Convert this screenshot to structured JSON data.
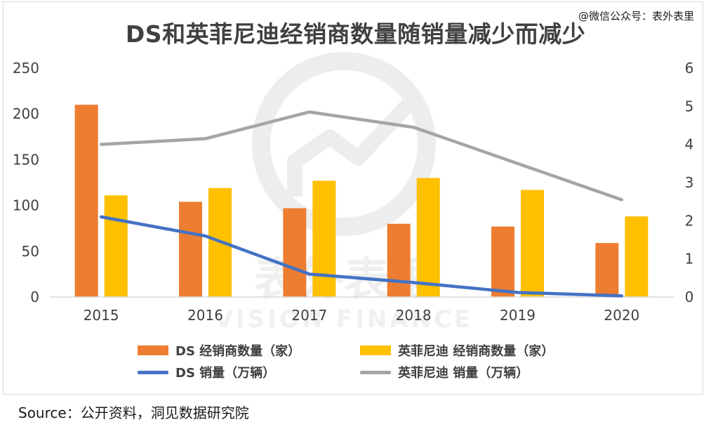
{
  "header": {
    "title": "DS和英菲尼迪经销商数量随销量减少而减少",
    "credit": "@微信公众号：表外表里"
  },
  "footer": {
    "source": "Source：公开资料，洞见数据研究院"
  },
  "watermark": {
    "cn_text": "表外表里",
    "en_text": "VISION FINANCE"
  },
  "colors": {
    "ds_dealers": "#ED7D31",
    "infiniti_dealers": "#FFC000",
    "ds_sales": "#4472C4",
    "infiniti_sales": "#A5A5A5"
  },
  "chart_data": {
    "type": "bar",
    "title": "DS和英菲尼迪经销商数量随销量减少而减少",
    "categories": [
      "2015",
      "2016",
      "2017",
      "2018",
      "2019",
      "2020"
    ],
    "y_left": {
      "ylim": [
        0,
        250
      ],
      "ticks": [
        "0",
        "50",
        "100",
        "150",
        "200",
        "250"
      ]
    },
    "y_right": {
      "ylim": [
        0,
        6
      ],
      "ticks": [
        "0",
        "1",
        "2",
        "3",
        "4",
        "5",
        "6"
      ]
    },
    "grid": false,
    "legend_position": "bottom",
    "series": [
      {
        "name": "DS 经销商数量（家）",
        "kind": "bar",
        "axis": "left",
        "values": [
          210,
          104,
          97,
          80,
          77,
          59
        ]
      },
      {
        "name": "英菲尼迪 经销商数量（家）",
        "kind": "bar",
        "axis": "left",
        "values": [
          111,
          119,
          127,
          130,
          117,
          88
        ]
      },
      {
        "name": "DS 销量（万辆）",
        "kind": "line",
        "axis": "right",
        "values": [
          2.1,
          1.6,
          0.6,
          0.38,
          0.12,
          0.03
        ]
      },
      {
        "name": "英菲尼迪 销量（万辆）",
        "kind": "line",
        "axis": "right",
        "values": [
          4.0,
          4.15,
          4.85,
          4.45,
          3.5,
          2.55
        ]
      }
    ]
  }
}
